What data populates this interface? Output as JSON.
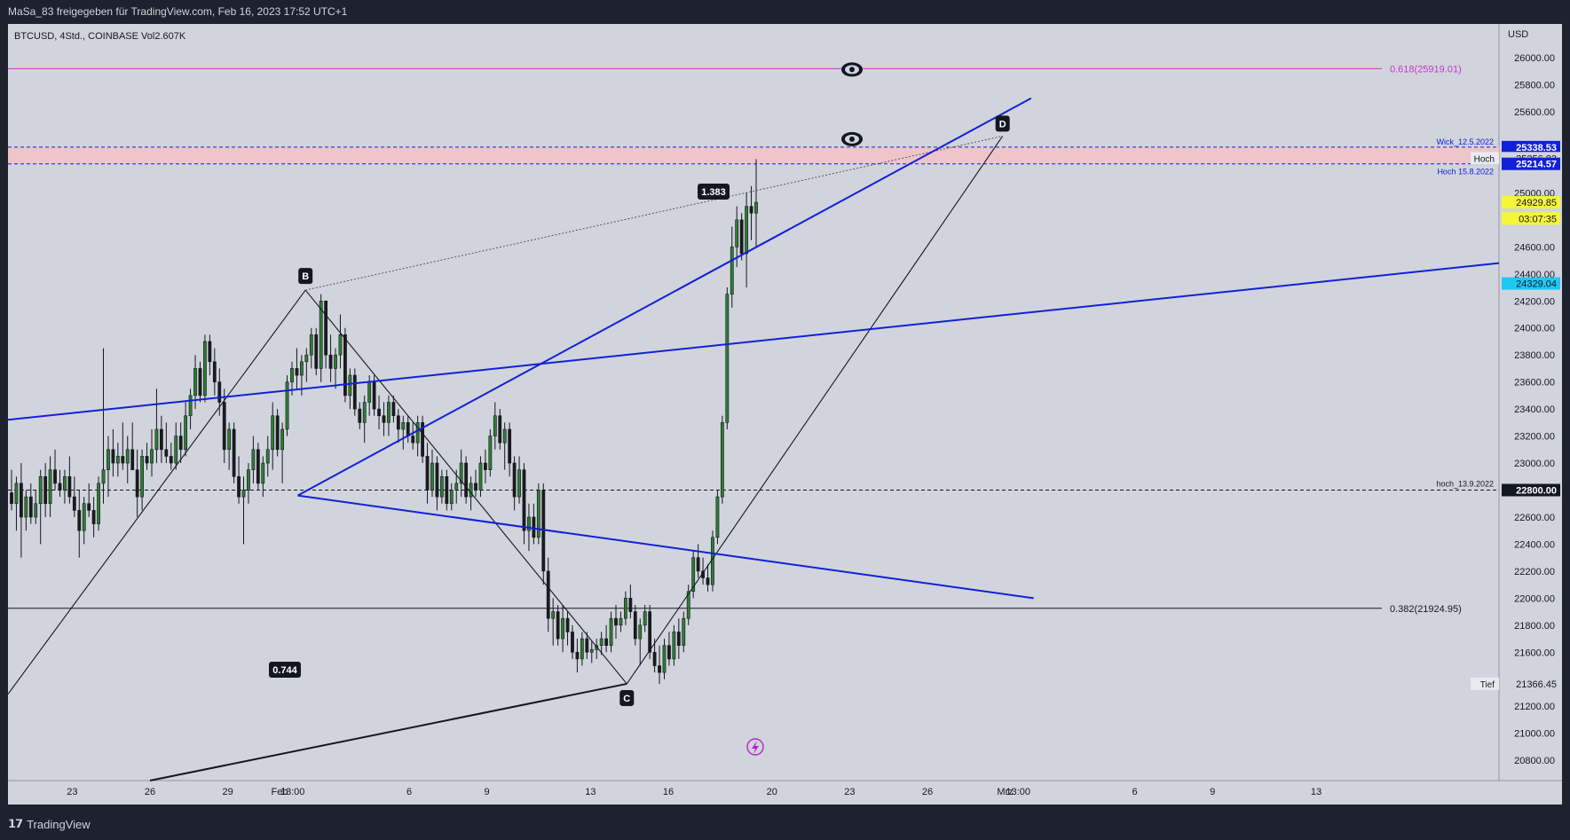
{
  "header": {
    "shared_by": "MaSa_83 freigegeben für TradingView.com, Feb 16, 2023 17:52 UTC+1"
  },
  "legend": {
    "symbol_line": "BTCUSD, 4Std., COINBASE  Vol2.607K"
  },
  "footer": {
    "brand": "TradingView"
  },
  "colors": {
    "background": "#d1d4dc",
    "up_candle": "#2e7d32",
    "down_candle": "#1b1b1b",
    "trendline": "#1220d6",
    "fib_upper": "#cc33cc",
    "zone_fill": "#f3c2c6"
  },
  "chart_data": {
    "type": "candlestick",
    "symbol": "BTCUSD",
    "timeframe": "4Std.",
    "exchange": "COINBASE",
    "currency": "USD",
    "ylim": [
      20650,
      26250
    ],
    "y_ticks": [
      20800,
      21000,
      21200,
      21600,
      21800,
      22000,
      22200,
      22400,
      22600,
      23000,
      23200,
      23400,
      23600,
      23800,
      24000,
      24200,
      24400,
      24600,
      25000,
      25600,
      25800,
      26000
    ],
    "x_ticks": [
      {
        "label": "23",
        "t": -8
      },
      {
        "label": "26",
        "t": -5
      },
      {
        "label": "29",
        "t": -2
      },
      {
        "label": "Feb",
        "t": 0
      },
      {
        "label": "13:00",
        "t": 0.5
      },
      {
        "label": "6",
        "t": 5
      },
      {
        "label": "9",
        "t": 8
      },
      {
        "label": "13",
        "t": 12
      },
      {
        "label": "16",
        "t": 15
      },
      {
        "label": "20",
        "t": 19
      },
      {
        "label": "23",
        "t": 22
      },
      {
        "label": "26",
        "t": 25
      },
      {
        "label": "Mrz",
        "t": 28
      },
      {
        "label": "13:00",
        "t": 28.5
      },
      {
        "label": "6",
        "t": 33
      },
      {
        "label": "9",
        "t": 36
      },
      {
        "label": "13",
        "t": 40
      }
    ],
    "candles": [
      {
        "o": 22780,
        "h": 22950,
        "l": 22650,
        "c": 22700
      },
      {
        "o": 22700,
        "h": 22900,
        "l": 22500,
        "c": 22850
      },
      {
        "o": 22850,
        "h": 23000,
        "l": 22300,
        "c": 22600
      },
      {
        "o": 22600,
        "h": 22800,
        "l": 22500,
        "c": 22750
      },
      {
        "o": 22750,
        "h": 22850,
        "l": 22550,
        "c": 22600
      },
      {
        "o": 22600,
        "h": 22800,
        "l": 22550,
        "c": 22700
      },
      {
        "o": 22700,
        "h": 22950,
        "l": 22400,
        "c": 22900
      },
      {
        "o": 22900,
        "h": 23000,
        "l": 22600,
        "c": 22700
      },
      {
        "o": 22700,
        "h": 23050,
        "l": 22600,
        "c": 22950
      },
      {
        "o": 22950,
        "h": 23100,
        "l": 22800,
        "c": 22850
      },
      {
        "o": 22850,
        "h": 22950,
        "l": 22750,
        "c": 22800
      },
      {
        "o": 22800,
        "h": 22950,
        "l": 22700,
        "c": 22900
      },
      {
        "o": 22900,
        "h": 23050,
        "l": 22700,
        "c": 22750
      },
      {
        "o": 22750,
        "h": 22900,
        "l": 22600,
        "c": 22650
      },
      {
        "o": 22650,
        "h": 22800,
        "l": 22300,
        "c": 22500
      },
      {
        "o": 22500,
        "h": 22750,
        "l": 22400,
        "c": 22700
      },
      {
        "o": 22700,
        "h": 22850,
        "l": 22600,
        "c": 22650
      },
      {
        "o": 22650,
        "h": 22750,
        "l": 22450,
        "c": 22550
      },
      {
        "o": 22550,
        "h": 22900,
        "l": 22500,
        "c": 22850
      },
      {
        "o": 22850,
        "h": 23850,
        "l": 22700,
        "c": 22950
      },
      {
        "o": 22950,
        "h": 23200,
        "l": 22750,
        "c": 23100
      },
      {
        "o": 23100,
        "h": 23250,
        "l": 22900,
        "c": 23000
      },
      {
        "o": 23000,
        "h": 23150,
        "l": 22900,
        "c": 23050
      },
      {
        "o": 23050,
        "h": 23300,
        "l": 22950,
        "c": 23000
      },
      {
        "o": 23000,
        "h": 23200,
        "l": 22850,
        "c": 23100
      },
      {
        "o": 23100,
        "h": 23300,
        "l": 22950,
        "c": 22950
      },
      {
        "o": 22950,
        "h": 23100,
        "l": 22600,
        "c": 22750
      },
      {
        "o": 22750,
        "h": 23100,
        "l": 22650,
        "c": 23050
      },
      {
        "o": 23050,
        "h": 23150,
        "l": 22950,
        "c": 23000
      },
      {
        "o": 23000,
        "h": 23250,
        "l": 22900,
        "c": 23100
      },
      {
        "o": 23100,
        "h": 23550,
        "l": 23000,
        "c": 23250
      },
      {
        "o": 23250,
        "h": 23350,
        "l": 23000,
        "c": 23100
      },
      {
        "o": 23100,
        "h": 23300,
        "l": 23000,
        "c": 23050
      },
      {
        "o": 23050,
        "h": 23150,
        "l": 22950,
        "c": 23000
      },
      {
        "o": 23000,
        "h": 23300,
        "l": 22950,
        "c": 23200
      },
      {
        "o": 23200,
        "h": 23300,
        "l": 23000,
        "c": 23100
      },
      {
        "o": 23100,
        "h": 23450,
        "l": 23050,
        "c": 23350
      },
      {
        "o": 23350,
        "h": 23550,
        "l": 23250,
        "c": 23500
      },
      {
        "o": 23500,
        "h": 23800,
        "l": 23400,
        "c": 23700
      },
      {
        "o": 23700,
        "h": 23750,
        "l": 23450,
        "c": 23500
      },
      {
        "o": 23500,
        "h": 23950,
        "l": 23450,
        "c": 23900
      },
      {
        "o": 23900,
        "h": 23950,
        "l": 23650,
        "c": 23750
      },
      {
        "o": 23750,
        "h": 23850,
        "l": 23500,
        "c": 23600
      },
      {
        "o": 23600,
        "h": 23700,
        "l": 23350,
        "c": 23450
      },
      {
        "o": 23450,
        "h": 23550,
        "l": 23000,
        "c": 23100
      },
      {
        "o": 23100,
        "h": 23300,
        "l": 22950,
        "c": 23250
      },
      {
        "o": 23250,
        "h": 23300,
        "l": 22850,
        "c": 22900
      },
      {
        "o": 22900,
        "h": 23050,
        "l": 22700,
        "c": 22750
      },
      {
        "o": 22750,
        "h": 22900,
        "l": 22400,
        "c": 22800
      },
      {
        "o": 22800,
        "h": 23000,
        "l": 22700,
        "c": 22950
      },
      {
        "o": 22950,
        "h": 23200,
        "l": 22850,
        "c": 23100
      },
      {
        "o": 23100,
        "h": 23150,
        "l": 22800,
        "c": 22850
      },
      {
        "o": 22850,
        "h": 23050,
        "l": 22750,
        "c": 23000
      },
      {
        "o": 23000,
        "h": 23200,
        "l": 22900,
        "c": 23100
      },
      {
        "o": 23100,
        "h": 23450,
        "l": 22950,
        "c": 23350
      },
      {
        "o": 23350,
        "h": 23400,
        "l": 23050,
        "c": 23100
      },
      {
        "o": 23100,
        "h": 23300,
        "l": 22850,
        "c": 23250
      },
      {
        "o": 23250,
        "h": 23650,
        "l": 23200,
        "c": 23600
      },
      {
        "o": 23600,
        "h": 23750,
        "l": 23500,
        "c": 23700
      },
      {
        "o": 23700,
        "h": 23850,
        "l": 23550,
        "c": 23650
      },
      {
        "o": 23650,
        "h": 23800,
        "l": 23500,
        "c": 23750
      },
      {
        "o": 23750,
        "h": 23850,
        "l": 23600,
        "c": 23800
      },
      {
        "o": 23800,
        "h": 24000,
        "l": 23700,
        "c": 23950
      },
      {
        "o": 23950,
        "h": 24000,
        "l": 23650,
        "c": 23700
      },
      {
        "o": 23700,
        "h": 24250,
        "l": 23600,
        "c": 24200
      },
      {
        "o": 24200,
        "h": 24200,
        "l": 23700,
        "c": 23800
      },
      {
        "o": 23800,
        "h": 23950,
        "l": 23600,
        "c": 23700
      },
      {
        "o": 23700,
        "h": 23850,
        "l": 23550,
        "c": 23800
      },
      {
        "o": 23800,
        "h": 24100,
        "l": 23700,
        "c": 23950
      },
      {
        "o": 23950,
        "h": 24000,
        "l": 23450,
        "c": 23500
      },
      {
        "o": 23500,
        "h": 23700,
        "l": 23400,
        "c": 23650
      },
      {
        "o": 23650,
        "h": 23700,
        "l": 23350,
        "c": 23400
      },
      {
        "o": 23400,
        "h": 23450,
        "l": 23250,
        "c": 23300
      },
      {
        "o": 23300,
        "h": 23500,
        "l": 23150,
        "c": 23450
      },
      {
        "o": 23450,
        "h": 23650,
        "l": 23350,
        "c": 23600
      },
      {
        "o": 23600,
        "h": 23650,
        "l": 23350,
        "c": 23400
      },
      {
        "o": 23400,
        "h": 23500,
        "l": 23250,
        "c": 23350
      },
      {
        "o": 23350,
        "h": 23450,
        "l": 23200,
        "c": 23300
      },
      {
        "o": 23300,
        "h": 23500,
        "l": 23200,
        "c": 23450
      },
      {
        "o": 23450,
        "h": 23500,
        "l": 23300,
        "c": 23350
      },
      {
        "o": 23350,
        "h": 23400,
        "l": 23150,
        "c": 23250
      },
      {
        "o": 23250,
        "h": 23350,
        "l": 23100,
        "c": 23300
      },
      {
        "o": 23300,
        "h": 23350,
        "l": 23150,
        "c": 23200
      },
      {
        "o": 23200,
        "h": 23300,
        "l": 23100,
        "c": 23150
      },
      {
        "o": 23150,
        "h": 23350,
        "l": 23050,
        "c": 23300
      },
      {
        "o": 23300,
        "h": 23350,
        "l": 23000,
        "c": 23050
      },
      {
        "o": 23050,
        "h": 23150,
        "l": 22700,
        "c": 22800
      },
      {
        "o": 22800,
        "h": 23100,
        "l": 22750,
        "c": 23000
      },
      {
        "o": 23000,
        "h": 23050,
        "l": 22650,
        "c": 22750
      },
      {
        "o": 22750,
        "h": 22950,
        "l": 22700,
        "c": 22900
      },
      {
        "o": 22900,
        "h": 22950,
        "l": 22650,
        "c": 22700
      },
      {
        "o": 22700,
        "h": 22850,
        "l": 22650,
        "c": 22800
      },
      {
        "o": 22800,
        "h": 22950,
        "l": 22700,
        "c": 22850
      },
      {
        "o": 22850,
        "h": 23100,
        "l": 22750,
        "c": 23000
      },
      {
        "o": 23000,
        "h": 23050,
        "l": 22700,
        "c": 22750
      },
      {
        "o": 22750,
        "h": 22900,
        "l": 22650,
        "c": 22850
      },
      {
        "o": 22850,
        "h": 22950,
        "l": 22750,
        "c": 22800
      },
      {
        "o": 22800,
        "h": 23050,
        "l": 22750,
        "c": 23000
      },
      {
        "o": 23000,
        "h": 23100,
        "l": 22850,
        "c": 22950
      },
      {
        "o": 22950,
        "h": 23250,
        "l": 22900,
        "c": 23200
      },
      {
        "o": 23200,
        "h": 23450,
        "l": 23100,
        "c": 23350
      },
      {
        "o": 23350,
        "h": 23400,
        "l": 23100,
        "c": 23150
      },
      {
        "o": 23150,
        "h": 23300,
        "l": 22950,
        "c": 23250
      },
      {
        "o": 23250,
        "h": 23300,
        "l": 22900,
        "c": 23000
      },
      {
        "o": 23000,
        "h": 23050,
        "l": 22650,
        "c": 22750
      },
      {
        "o": 22750,
        "h": 23050,
        "l": 22700,
        "c": 22950
      },
      {
        "o": 22950,
        "h": 23000,
        "l": 22400,
        "c": 22500
      },
      {
        "o": 22500,
        "h": 22700,
        "l": 22350,
        "c": 22600
      },
      {
        "o": 22600,
        "h": 22700,
        "l": 22400,
        "c": 22450
      },
      {
        "o": 22450,
        "h": 22850,
        "l": 22400,
        "c": 22800
      },
      {
        "o": 22800,
        "h": 22850,
        "l": 22100,
        "c": 22200
      },
      {
        "o": 22200,
        "h": 22300,
        "l": 21750,
        "c": 21850
      },
      {
        "o": 21850,
        "h": 22000,
        "l": 21650,
        "c": 21900
      },
      {
        "o": 21900,
        "h": 21950,
        "l": 21650,
        "c": 21700
      },
      {
        "o": 21700,
        "h": 21950,
        "l": 21600,
        "c": 21850
      },
      {
        "o": 21850,
        "h": 21900,
        "l": 21650,
        "c": 21750
      },
      {
        "o": 21750,
        "h": 21800,
        "l": 21550,
        "c": 21600
      },
      {
        "o": 21600,
        "h": 21700,
        "l": 21450,
        "c": 21550
      },
      {
        "o": 21550,
        "h": 21750,
        "l": 21500,
        "c": 21700
      },
      {
        "o": 21700,
        "h": 21750,
        "l": 21550,
        "c": 21600
      },
      {
        "o": 21600,
        "h": 21680,
        "l": 21520,
        "c": 21620
      },
      {
        "o": 21620,
        "h": 21700,
        "l": 21550,
        "c": 21650
      },
      {
        "o": 21650,
        "h": 21750,
        "l": 21580,
        "c": 21700
      },
      {
        "o": 21700,
        "h": 21800,
        "l": 21600,
        "c": 21650
      },
      {
        "o": 21650,
        "h": 21900,
        "l": 21600,
        "c": 21850
      },
      {
        "o": 21850,
        "h": 21950,
        "l": 21700,
        "c": 21800
      },
      {
        "o": 21800,
        "h": 21900,
        "l": 21750,
        "c": 21850
      },
      {
        "o": 21850,
        "h": 22050,
        "l": 21800,
        "c": 22000
      },
      {
        "o": 22000,
        "h": 22100,
        "l": 21850,
        "c": 21900
      },
      {
        "o": 21900,
        "h": 21950,
        "l": 21650,
        "c": 21700
      },
      {
        "o": 21700,
        "h": 21850,
        "l": 21500,
        "c": 21800
      },
      {
        "o": 21800,
        "h": 21950,
        "l": 21750,
        "c": 21900
      },
      {
        "o": 21900,
        "h": 21950,
        "l": 21550,
        "c": 21600
      },
      {
        "o": 21600,
        "h": 21700,
        "l": 21450,
        "c": 21500
      },
      {
        "o": 21500,
        "h": 21650,
        "l": 21366,
        "c": 21450
      },
      {
        "o": 21450,
        "h": 21700,
        "l": 21400,
        "c": 21650
      },
      {
        "o": 21650,
        "h": 21750,
        "l": 21500,
        "c": 21550
      },
      {
        "o": 21550,
        "h": 21800,
        "l": 21500,
        "c": 21750
      },
      {
        "o": 21750,
        "h": 21850,
        "l": 21550,
        "c": 21650
      },
      {
        "o": 21650,
        "h": 21900,
        "l": 21600,
        "c": 21850
      },
      {
        "o": 21850,
        "h": 22100,
        "l": 21800,
        "c": 22050
      },
      {
        "o": 22050,
        "h": 22350,
        "l": 22000,
        "c": 22300
      },
      {
        "o": 22300,
        "h": 22400,
        "l": 22150,
        "c": 22200
      },
      {
        "o": 22200,
        "h": 22300,
        "l": 22100,
        "c": 22150
      },
      {
        "o": 22150,
        "h": 22250,
        "l": 22050,
        "c": 22100
      },
      {
        "o": 22100,
        "h": 22500,
        "l": 22050,
        "c": 22450
      },
      {
        "o": 22450,
        "h": 22800,
        "l": 22400,
        "c": 22750
      },
      {
        "o": 22750,
        "h": 23350,
        "l": 22700,
        "c": 23300
      },
      {
        "o": 23300,
        "h": 24300,
        "l": 23250,
        "c": 24250
      },
      {
        "o": 24250,
        "h": 24750,
        "l": 24150,
        "c": 24600
      },
      {
        "o": 24600,
        "h": 24900,
        "l": 24450,
        "c": 24800
      },
      {
        "o": 24800,
        "h": 24850,
        "l": 24500,
        "c": 24550
      },
      {
        "o": 24550,
        "h": 25000,
        "l": 24300,
        "c": 24900
      },
      {
        "o": 24900,
        "h": 25050,
        "l": 24650,
        "c": 24850
      },
      {
        "o": 24850,
        "h": 25250,
        "l": 24600,
        "c": 24930
      }
    ],
    "price_labels": [
      {
        "value": 25338.53,
        "text": "25338.53",
        "bg": "#1220d6",
        "fg": "#ffffff"
      },
      {
        "value": 25256.83,
        "text": "25256.83",
        "bg": "#d1d4dc",
        "fg": "#131722",
        "tag": "Hoch"
      },
      {
        "value": 25214.57,
        "text": "25214.57",
        "bg": "#1220d6",
        "fg": "#ffffff"
      },
      {
        "value": 24929.85,
        "text": "24929.85",
        "bg": "#f5f53a",
        "fg": "#131722"
      },
      {
        "value": 24810,
        "text": "03:07:35",
        "bg": "#f5f53a",
        "fg": "#131722"
      },
      {
        "value": 24329.04,
        "text": "24329.04",
        "bg": "#1fc7f5",
        "fg": "#131722"
      },
      {
        "value": 22800.0,
        "text": "22800.00",
        "bg": "#131722",
        "fg": "#ffffff"
      },
      {
        "value": 21366.45,
        "text": "21366.45",
        "bg": "#d1d4dc",
        "fg": "#131722",
        "tag": "Tief"
      }
    ],
    "horizontal_lines": [
      {
        "value": 25919.01,
        "label": "0.618(25919.01)",
        "color": "#cc33cc"
      },
      {
        "value": 21924.95,
        "label": "0.382(21924.95)",
        "color": "#131722"
      },
      {
        "value": 22800.0,
        "label": "hoch_13.9.2022",
        "color": "#131722",
        "dashed": true
      },
      {
        "value": 25338.53,
        "label": "Wick_12.5.2022",
        "color": "#1220d6",
        "dashed": true
      },
      {
        "value": 25214.57,
        "label": "Hoch 15.8.2022",
        "color": "#1220d6",
        "dashed": true
      }
    ],
    "pattern_points": [
      {
        "label": "B",
        "t": 0.2,
        "price": 24280
      },
      {
        "label": "C",
        "t": 12.6,
        "price": 21366
      },
      {
        "label": "D",
        "t": 27.1,
        "price": 25420
      }
    ],
    "ratio_labels": [
      "1.383",
      "0.744"
    ]
  }
}
